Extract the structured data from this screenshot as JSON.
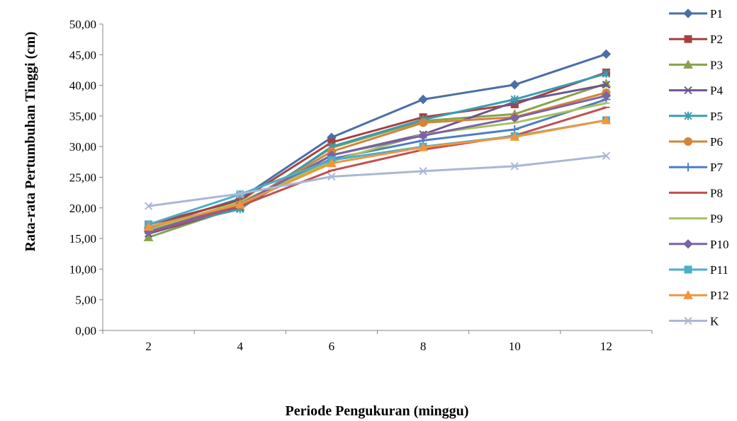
{
  "chart_data": {
    "type": "line",
    "title": "",
    "xlabel": "Periode Pengukuran (minggu)",
    "ylabel": "Rata-rata Pertumbuhan Tinggi (cm)",
    "x": [
      2,
      4,
      6,
      8,
      10,
      12
    ],
    "x_tick_labels": [
      "2",
      "4",
      "6",
      "8",
      "10",
      "12"
    ],
    "ylim": [
      0,
      50
    ],
    "y_tick_labels": [
      "0,00",
      "5,00",
      "10,00",
      "15,00",
      "20,00",
      "25,00",
      "30,00",
      "35,00",
      "40,00",
      "45,00",
      "50,00"
    ],
    "grid": false,
    "legend_position": "right",
    "series": [
      {
        "name": "P1",
        "color": "#4A6EA8",
        "marker": "diamond",
        "values": [
          16.8,
          21.5,
          31.5,
          37.7,
          40.1,
          45.1
        ]
      },
      {
        "name": "P2",
        "color": "#A5423F",
        "marker": "square",
        "values": [
          17.3,
          21.2,
          30.7,
          34.8,
          36.9,
          42.1
        ]
      },
      {
        "name": "P3",
        "color": "#86A34A",
        "marker": "triangle",
        "values": [
          15.2,
          20.2,
          29.8,
          34.2,
          35.3,
          40.3
        ]
      },
      {
        "name": "P4",
        "color": "#6D5490",
        "marker": "x",
        "values": [
          15.8,
          20.0,
          28.6,
          32.0,
          37.3,
          40.1
        ]
      },
      {
        "name": "P5",
        "color": "#3C9CB0",
        "marker": "star",
        "values": [
          16.3,
          19.8,
          30.0,
          34.4,
          37.7,
          41.9
        ]
      },
      {
        "name": "P6",
        "color": "#D3843A",
        "marker": "circle",
        "values": [
          16.6,
          20.4,
          29.2,
          33.9,
          34.8,
          38.8
        ]
      },
      {
        "name": "P7",
        "color": "#4D7DC2",
        "marker": "plus",
        "values": [
          16.5,
          20.8,
          28.0,
          31.0,
          32.8,
          37.7
        ]
      },
      {
        "name": "P8",
        "color": "#C24F4F",
        "marker": "dash",
        "values": [
          16.0,
          20.3,
          26.1,
          29.5,
          31.8,
          36.4
        ]
      },
      {
        "name": "P9",
        "color": "#A3C45A",
        "marker": "dash",
        "values": [
          16.4,
          21.0,
          27.6,
          32.0,
          33.9,
          37.1
        ]
      },
      {
        "name": "P10",
        "color": "#7C63A4",
        "marker": "diamond",
        "values": [
          16.1,
          20.6,
          28.6,
          31.8,
          34.7,
          38.3
        ]
      },
      {
        "name": "P11",
        "color": "#4BAECB",
        "marker": "square",
        "values": [
          17.3,
          22.2,
          27.8,
          30.0,
          31.7,
          34.3
        ]
      },
      {
        "name": "P12",
        "color": "#F0963C",
        "marker": "triangle",
        "values": [
          16.9,
          20.6,
          27.3,
          29.9,
          31.6,
          34.3
        ]
      },
      {
        "name": "K",
        "color": "#A9B7D6",
        "marker": "x",
        "values": [
          20.3,
          22.3,
          25.1,
          26.0,
          26.8,
          28.5
        ]
      }
    ]
  }
}
